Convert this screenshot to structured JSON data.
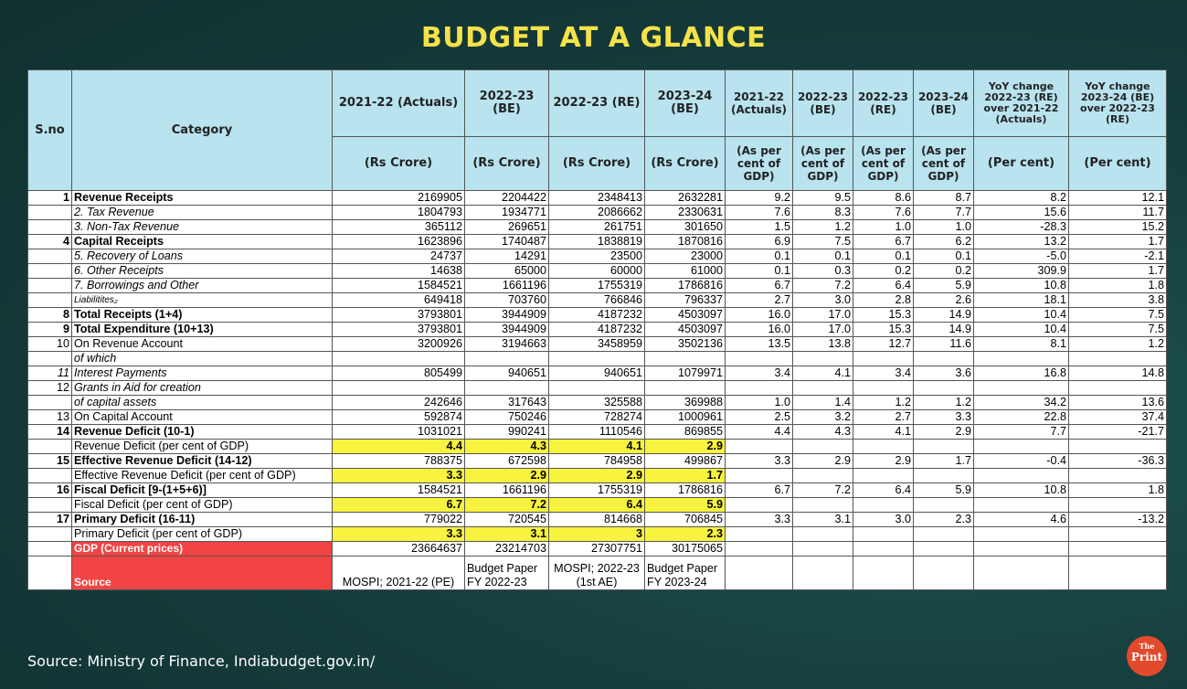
{
  "title": "BUDGET AT A GLANCE",
  "source_note": "Source: Ministry of Finance, Indiabudget.gov.in/",
  "logo": {
    "small": "The",
    "big": "Print"
  },
  "header": {
    "sno": "S.no",
    "category": "Category",
    "col1": "2021-22 (Actuals)",
    "col2": "2022-23 (BE)",
    "col3": "2022-23 (RE)",
    "col4": "2023-24 (BE)",
    "col5": "2021-22 (Actuals)",
    "col6": "2022-23 (BE)",
    "col7": "2022-23 (RE)",
    "col8": "2023-24 (BE)",
    "col9": "YoY change 2022-23 (RE) over 2021-22 (Actuals)",
    "col10": "YoY change 2023-24 (BE) over 2022-23 (RE)",
    "unit_rs": "(Rs Crore)",
    "unit_gdp": "(As per cent of GDP)",
    "unit_pct": "(Per cent)"
  },
  "rows": [
    {
      "sno": "1",
      "cat": "Revenue Receipts",
      "v": [
        "2169905",
        "2204422",
        "2348413",
        "2632281",
        "9.2",
        "9.5",
        "8.6",
        "8.7",
        "8.2",
        "12.1"
      ]
    },
    {
      "sno": "",
      "cat": "2. Tax Revenue",
      "v": [
        "1804793",
        "1934771",
        "2086662",
        "2330631",
        "7.6",
        "8.3",
        "7.6",
        "7.7",
        "15.6",
        "11.7"
      ]
    },
    {
      "sno": "",
      "cat": "3. Non-Tax Revenue",
      "v": [
        "365112",
        "269651",
        "261751",
        "301650",
        "1.5",
        "1.2",
        "1.0",
        "1.0",
        "-28.3",
        "15.2"
      ]
    },
    {
      "sno": "4",
      "cat": "Capital Receipts",
      "v": [
        "1623896",
        "1740487",
        "1838819",
        "1870816",
        "6.9",
        "7.5",
        "6.7",
        "6.2",
        "13.2",
        "1.7"
      ]
    },
    {
      "sno": "",
      "cat": "5. Recovery of Loans",
      "v": [
        "24737",
        "14291",
        "23500",
        "23000",
        "0.1",
        "0.1",
        "0.1",
        "0.1",
        "-5.0",
        "-2.1"
      ]
    },
    {
      "sno": "",
      "cat": "6. Other Receipts",
      "v": [
        "14638",
        "65000",
        "60000",
        "61000",
        "0.1",
        "0.3",
        "0.2",
        "0.2",
        "309.9",
        "1.7"
      ]
    },
    {
      "sno": "",
      "cat": "7. Borrowings and Other",
      "v": [
        "1584521",
        "1661196",
        "1755319",
        "1786816",
        "6.7",
        "7.2",
        "6.4",
        "5.9",
        "10.8",
        "1.8"
      ]
    },
    {
      "sno": "",
      "cat": "Liabilitites₂",
      "v": [
        "649418",
        "703760",
        "766846",
        "796337",
        "2.7",
        "3.0",
        "2.8",
        "2.6",
        "18.1",
        "3.8"
      ]
    },
    {
      "sno": "8",
      "cat": "Total Receipts (1+4)",
      "v": [
        "3793801",
        "3944909",
        "4187232",
        "4503097",
        "16.0",
        "17.0",
        "15.3",
        "14.9",
        "10.4",
        "7.5"
      ]
    },
    {
      "sno": "9",
      "cat": "Total Expenditure (10+13)",
      "v": [
        "3793801",
        "3944909",
        "4187232",
        "4503097",
        "16.0",
        "17.0",
        "15.3",
        "14.9",
        "10.4",
        "7.5"
      ]
    },
    {
      "sno": "10",
      "cat": "On  Revenue Account",
      "v": [
        "3200926",
        "3194663",
        "3458959",
        "3502136",
        "13.5",
        "13.8",
        "12.7",
        "11.6",
        "8.1",
        "1.2"
      ]
    },
    {
      "sno": "",
      "cat": "of which",
      "v": [
        "",
        "",
        "",
        "",
        "",
        "",
        "",
        "",
        "",
        ""
      ]
    },
    {
      "sno": "11",
      "cat": "Interest Payments",
      "v": [
        "805499",
        "940651",
        "940651",
        "1079971",
        "3.4",
        "4.1",
        "3.4",
        "3.6",
        "16.8",
        "14.8"
      ]
    },
    {
      "sno": "12",
      "cat": "Grants in Aid for creation",
      "v": [
        "",
        "",
        "",
        "",
        "",
        "",
        "",
        "",
        "",
        ""
      ]
    },
    {
      "sno": "",
      "cat": "of capital assets",
      "v": [
        "242646",
        "317643",
        "325588",
        "369988",
        "1.0",
        "1.4",
        "1.2",
        "1.2",
        "34.2",
        "13.6"
      ]
    },
    {
      "sno": "13",
      "cat": "On Capital Account",
      "v": [
        "592874",
        "750246",
        "728274",
        "1000961",
        "2.5",
        "3.2",
        "2.7",
        "3.3",
        "22.8",
        "37.4"
      ]
    },
    {
      "sno": "14",
      "cat": "Revenue Deficit (10-1)",
      "v": [
        "1031021",
        "990241",
        "1110546",
        "869855",
        "4.4",
        "4.3",
        "4.1",
        "2.9",
        "7.7",
        "-21.7"
      ]
    },
    {
      "sno": "",
      "cat": "Revenue Deficit (per cent of GDP)",
      "v": [
        "4.4",
        "4.3",
        "4.1",
        "2.9",
        "",
        "",
        "",
        "",
        "",
        ""
      ]
    },
    {
      "sno": "15",
      "cat": "Effective Revenue Deficit (14-12)",
      "v": [
        "788375",
        "672598",
        "784958",
        "499867",
        "3.3",
        "2.9",
        "2.9",
        "1.7",
        "-0.4",
        "-36.3"
      ]
    },
    {
      "sno": "",
      "cat": "Effective Revenue Deficit (per cent of GDP)",
      "v": [
        "3.3",
        "2.9",
        "2.9",
        "1.7",
        "",
        "",
        "",
        "",
        "",
        ""
      ]
    },
    {
      "sno": "16",
      "cat": "Fiscal Deficit [9-(1+5+6)]",
      "v": [
        "1584521",
        "1661196",
        "1755319",
        "1786816",
        "6.7",
        "7.2",
        "6.4",
        "5.9",
        "10.8",
        "1.8"
      ]
    },
    {
      "sno": "",
      "cat": "Fiscal Deficit (per cent of GDP)",
      "v": [
        "6.7",
        "7.2",
        "6.4",
        "5.9",
        "",
        "",
        "",
        "",
        "",
        ""
      ]
    },
    {
      "sno": "17",
      "cat": "Primary Deficit (16-11)",
      "v": [
        "779022",
        "720545",
        "814668",
        "706845",
        "3.3",
        "3.1",
        "3.0",
        "2.3",
        "4.6",
        "-13.2"
      ]
    },
    {
      "sno": "",
      "cat": "Primary Deficit (per cent of GDP)",
      "v": [
        "3.3",
        "3.1",
        "3",
        "2.3",
        "",
        "",
        "",
        "",
        "",
        ""
      ]
    },
    {
      "sno": "",
      "cat": "GDP (Current prices)",
      "v": [
        "23664637",
        "23214703",
        "27307751",
        "30175065",
        "",
        "",
        "",
        "",
        "",
        ""
      ]
    },
    {
      "sno": "",
      "cat": "Source",
      "v": [
        "MOSPI; 2021-22 (PE)",
        "Budget Paper FY 2022-23",
        "MOSPI; 2022-23 (1st AE)",
        "Budget Paper FY 2023-24",
        "",
        "",
        "",
        "",
        "",
        ""
      ]
    }
  ],
  "colors": {
    "background": "#163f3e",
    "title": "#f5e24a",
    "header_bg": "#b9e3ef",
    "highlight": "#f7f33e",
    "red": "#f24444",
    "logo": "#e24a2c"
  }
}
